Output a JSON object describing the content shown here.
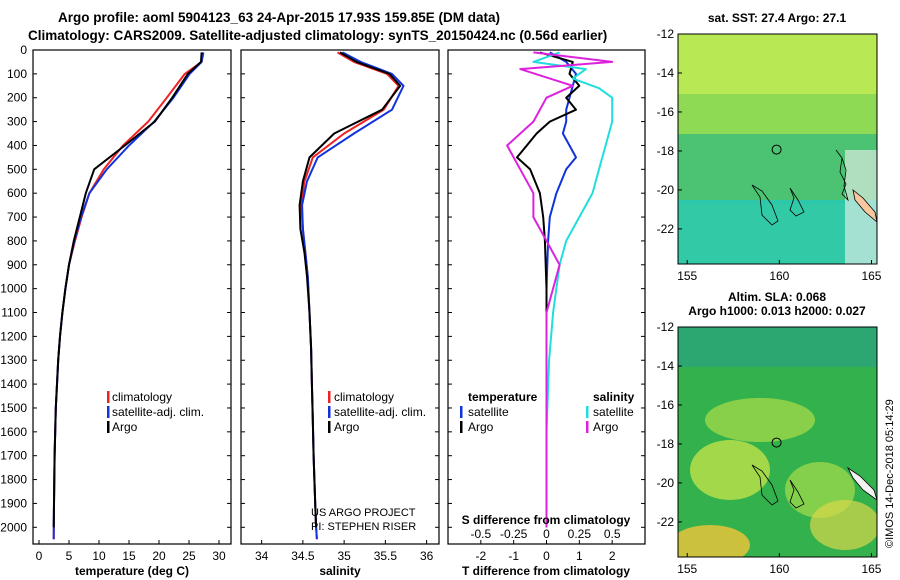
{
  "header": {
    "line1": "Argo profile: aoml 5904123_63 24-Apr-2015 17.93S 159.85E (DM data)",
    "line2": "Climatology: CARS2009. Satellite-adjusted climatology: synTS_20150424.nc (0.56d earlier)"
  },
  "colors": {
    "climatology": "#ee2222",
    "satellite_adj": "#1133dd",
    "argo": "#000000",
    "salinity_satellite": "#22dddd",
    "salinity_argo": "#dd22dd"
  },
  "footer": {
    "project": "US ARGO PROJECT",
    "pi": "PI: STEPHEN RISER",
    "imos": "©IMOS 14-Dec-2018 05:14:29"
  },
  "chart_data": [
    {
      "type": "line",
      "name": "temperature",
      "xlabel": "temperature (deg C)",
      "ylabel": "",
      "xlim": [
        -1,
        32
      ],
      "ylim": [
        2070,
        0
      ],
      "xticks": [
        0,
        5,
        10,
        15,
        20,
        25,
        30
      ],
      "yticks": [
        0,
        100,
        200,
        300,
        400,
        500,
        600,
        700,
        800,
        900,
        1000,
        1100,
        1200,
        1300,
        1400,
        1500,
        1600,
        1700,
        1800,
        1900,
        2000
      ],
      "legend": [
        "climatology",
        "satellite-adj. clim.",
        "Argo"
      ],
      "series": [
        {
          "name": "climatology",
          "color": "#ee2222",
          "x": [
            27.3,
            27.1,
            24.3,
            21.3,
            18.2,
            14.0,
            10.8,
            8.4,
            7.1,
            6.0,
            5.0,
            4.4,
            3.9,
            3.5,
            3.2,
            3.0,
            2.8,
            2.7,
            2.6,
            2.55,
            2.5,
            2.45
          ],
          "y": [
            10,
            50,
            100,
            200,
            300,
            400,
            500,
            600,
            700,
            800,
            900,
            1000,
            1100,
            1200,
            1300,
            1400,
            1500,
            1600,
            1700,
            1800,
            1900,
            2050
          ]
        },
        {
          "name": "satellite-adj. clim.",
          "color": "#1133dd",
          "x": [
            27.4,
            27.1,
            25.1,
            22.4,
            19.2,
            15.0,
            11.3,
            8.4,
            7.0,
            5.9,
            5.0,
            4.4,
            3.9,
            3.5,
            3.2,
            3.0,
            2.8,
            2.7,
            2.6,
            2.55,
            2.5,
            2.45
          ],
          "y": [
            10,
            50,
            100,
            200,
            300,
            400,
            500,
            600,
            700,
            800,
            900,
            1000,
            1100,
            1200,
            1300,
            1400,
            1500,
            1600,
            1700,
            1800,
            1900,
            2050
          ]
        },
        {
          "name": "Argo",
          "color": "#000000",
          "x": [
            27.1,
            27.0,
            24.8,
            22.2,
            19.3,
            14.3,
            9.2,
            7.8,
            6.8,
            5.8,
            5.0,
            4.4,
            3.9,
            3.5,
            3.2,
            3.0,
            2.8,
            2.7,
            2.6,
            2.55,
            2.5,
            2.45
          ],
          "y": [
            10,
            50,
            100,
            200,
            300,
            400,
            500,
            600,
            700,
            800,
            900,
            1000,
            1100,
            1200,
            1300,
            1400,
            1500,
            1600,
            1700,
            1800,
            1900,
            2000
          ]
        }
      ]
    },
    {
      "type": "line",
      "name": "salinity",
      "xlabel": "salinity",
      "xlim": [
        33.75,
        36.15
      ],
      "ylim": [
        2070,
        0
      ],
      "xticks": [
        34,
        34.5,
        35,
        35.5,
        36
      ],
      "legend": [
        "climatology",
        "satellite-adj. clim.",
        "Argo"
      ],
      "series": [
        {
          "name": "climatology",
          "color": "#ee2222",
          "x": [
            34.92,
            35.12,
            35.52,
            35.66,
            35.48,
            35.0,
            34.62,
            34.52,
            34.48,
            34.5,
            34.53,
            34.56,
            34.58,
            34.6,
            34.61,
            34.62,
            34.63,
            34.64,
            34.65,
            34.66,
            34.67
          ],
          "y": [
            10,
            50,
            100,
            150,
            250,
            350,
            450,
            550,
            650,
            750,
            850,
            950,
            1100,
            1250,
            1400,
            1550,
            1700,
            1800,
            1900,
            2000,
            2050
          ]
        },
        {
          "name": "satellite-adj. clim.",
          "color": "#1133dd",
          "x": [
            34.98,
            35.2,
            35.58,
            35.72,
            35.58,
            35.12,
            34.68,
            34.55,
            34.49,
            34.5,
            34.53,
            34.56,
            34.58,
            34.6,
            34.61,
            34.62,
            34.63,
            34.64,
            34.65,
            34.66,
            34.67
          ],
          "y": [
            10,
            50,
            100,
            150,
            250,
            350,
            450,
            550,
            650,
            750,
            850,
            950,
            1100,
            1250,
            1400,
            1550,
            1700,
            1800,
            1900,
            2000,
            2050
          ]
        },
        {
          "name": "Argo",
          "color": "#000000",
          "x": [
            34.95,
            35.15,
            35.55,
            35.68,
            35.46,
            34.88,
            34.58,
            34.5,
            34.46,
            34.47,
            34.52,
            34.55,
            34.58,
            34.6,
            34.61,
            34.62,
            34.63,
            34.64,
            34.65,
            34.66
          ],
          "y": [
            10,
            50,
            100,
            150,
            250,
            350,
            450,
            550,
            650,
            750,
            850,
            950,
            1100,
            1250,
            1400,
            1550,
            1700,
            1800,
            1900,
            2000
          ]
        }
      ]
    },
    {
      "type": "line",
      "name": "differences",
      "xlabel": "T difference from climatology",
      "x2label": "S difference from climatology",
      "xlim": [
        -3,
        3
      ],
      "ylim": [
        2070,
        0
      ],
      "xticks": [
        -2,
        -1,
        0,
        1,
        2
      ],
      "x2ticks": [
        "-0.5",
        "-0.25",
        "0",
        "0.25",
        "0.5"
      ],
      "legend_temperature": [
        "temperature",
        "satellite",
        "Argo"
      ],
      "legend_salinity": [
        "salinity",
        "satellite",
        "Argo"
      ],
      "series": [
        {
          "name": "temperature satellite",
          "color": "#1133dd",
          "x": [
            0.1,
            0.6,
            0.9,
            0.8,
            0.7,
            0.6,
            0.6,
            0.5,
            0.7,
            0.9,
            0.6,
            0.3,
            0.1,
            0.05,
            0.0,
            0.0,
            0.0,
            0.0
          ],
          "y": [
            10,
            50,
            100,
            150,
            200,
            250,
            300,
            350,
            400,
            450,
            500,
            600,
            700,
            800,
            1000,
            1400,
            1800,
            2000
          ]
        },
        {
          "name": "temperature Argo",
          "color": "#000000",
          "x": [
            -0.2,
            0.8,
            0.7,
            1.0,
            0.6,
            0.9,
            0.1,
            -0.3,
            -0.6,
            -0.9,
            -0.5,
            -0.2,
            -0.1,
            -0.05,
            0.0,
            0.0,
            0.0,
            0.0
          ],
          "y": [
            10,
            50,
            100,
            150,
            200,
            250,
            300,
            350,
            400,
            450,
            500,
            600,
            700,
            800,
            1000,
            1400,
            1800,
            2000
          ]
        },
        {
          "name": "salinity satellite",
          "color": "#22dddd",
          "x": [
            0.1,
            -0.1,
            0.3,
            0.2,
            0.4,
            0.5,
            0.5,
            0.45,
            0.4,
            0.35,
            0.25,
            0.15,
            0.1,
            0.05,
            0.02,
            0.0,
            0.0
          ],
          "y": [
            10,
            50,
            80,
            120,
            160,
            200,
            300,
            400,
            500,
            600,
            700,
            800,
            900,
            1100,
            1300,
            1600,
            2000
          ]
        },
        {
          "name": "salinity Argo",
          "color": "#dd22dd",
          "x": [
            -0.1,
            0.5,
            -0.2,
            0.2,
            0.0,
            -0.1,
            -0.3,
            -0.2,
            -0.1,
            -0.1,
            0.0,
            0.1,
            0.0,
            0.0,
            0.0,
            0.0
          ],
          "y": [
            10,
            50,
            80,
            150,
            200,
            300,
            400,
            500,
            600,
            700,
            800,
            900,
            1100,
            1300,
            1600,
            2000
          ]
        }
      ]
    },
    {
      "type": "heatmap",
      "name": "sst_map",
      "title": "sat. SST: 27.4  Argo: 27.1",
      "xticks": [
        155,
        160,
        165
      ],
      "yticks": [
        -12,
        -14,
        -16,
        -18,
        -20,
        -22
      ],
      "xlim": [
        154.5,
        165.3
      ],
      "ylim": [
        -23.8,
        -12
      ],
      "profile_location": [
        159.85,
        -17.93
      ]
    },
    {
      "type": "heatmap",
      "name": "sla_map",
      "title": "Altim. SLA: 0.068",
      "subtitle": "Argo h1000: 0.013  h2000: 0.027",
      "xticks": [
        155,
        160,
        165
      ],
      "yticks": [
        -12,
        -14,
        -16,
        -18,
        -20,
        -22
      ],
      "xlim": [
        154.5,
        165.3
      ],
      "ylim": [
        -23.8,
        -12
      ],
      "profile_location": [
        159.85,
        -17.93
      ]
    }
  ]
}
